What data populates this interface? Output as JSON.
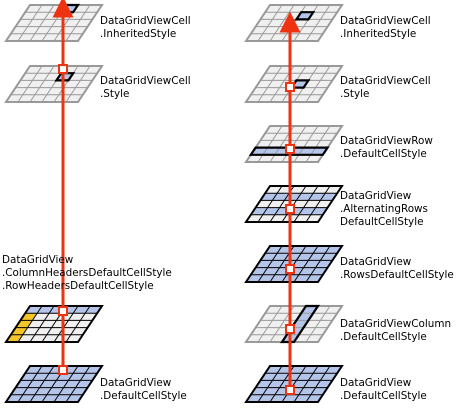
{
  "left_column": {
    "inherited_style": [
      "DataGridViewCell",
      ".InheritedStyle"
    ],
    "cell_style": [
      "DataGridViewCell",
      ".Style"
    ],
    "header_styles": [
      "DataGridView",
      ".ColumnHeadersDefaultCellStyle",
      ".RowHeadersDefaultCellStyle"
    ],
    "default_style": [
      "DataGridView",
      ".DefaultCellStyle"
    ]
  },
  "right_column": {
    "inherited_style": [
      "DataGridViewCell",
      ".InheritedStyle"
    ],
    "cell_style": [
      "DataGridViewCell",
      ".Style"
    ],
    "row_default_style": [
      "DataGridViewRow",
      ".DefaultCellStyle"
    ],
    "alternating_rows_style": [
      "DataGridView",
      ".AlternatingRows",
      "DefaultCellStyle"
    ],
    "rows_default_style": [
      "DataGridView",
      ".RowsDefaultCellStyle"
    ],
    "column_default_style": [
      "DataGridViewColumn",
      ".DefaultCellStyle"
    ],
    "default_style": [
      "DataGridView",
      ".DefaultCellStyle"
    ]
  },
  "colors": {
    "connector": "#ee3311",
    "highlight_fill": "#b5c5ea",
    "header_fill": "#f5c52c",
    "gray_fill": "#f0f0f0",
    "gray_line": "#999999",
    "dark_line": "#000000"
  }
}
